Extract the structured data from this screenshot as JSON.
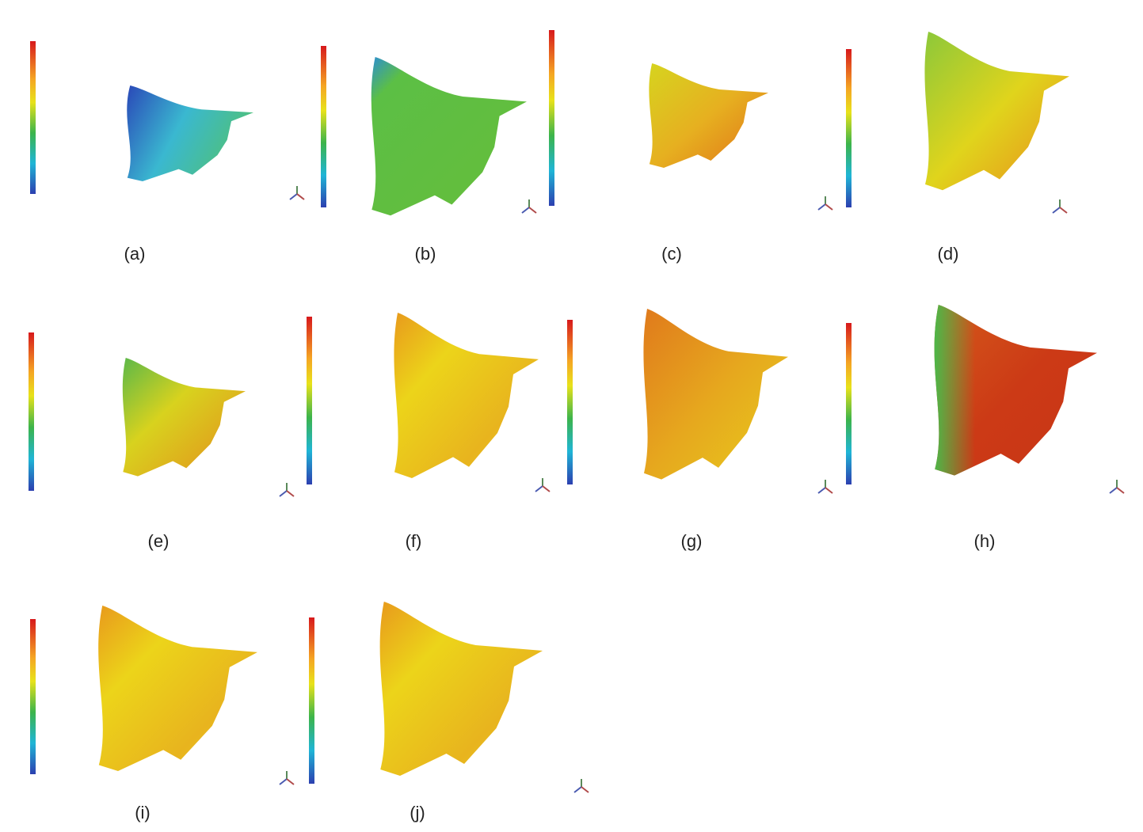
{
  "figure": {
    "panels": [
      {
        "label": "(a)"
      },
      {
        "label": "(b)"
      },
      {
        "label": "(c)"
      },
      {
        "label": "(d)"
      },
      {
        "label": "(e)"
      },
      {
        "label": "(f)"
      },
      {
        "label": "(g)"
      },
      {
        "label": "(h)"
      },
      {
        "label": "(i)"
      },
      {
        "label": "(j)"
      }
    ]
  }
}
